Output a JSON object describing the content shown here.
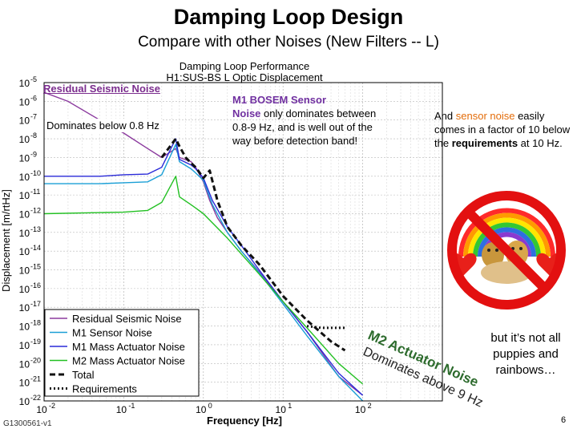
{
  "slide": {
    "title": "Damping Loop Design",
    "subtitle": "Compare with other Noises (New Filters -- L)",
    "doc_id": "G1300561-v1",
    "page_number": "6"
  },
  "annotations": {
    "residual_title": "Residual Seismic Noise",
    "residual_text": "Dominates below 0.8 Hz",
    "bosem_title": "M1 BOSEM Sensor",
    "bosem_highlight": "Noise",
    "bosem_rest": " only dominates between 0.8-9 Hz, and is well out of the way before detection band!",
    "sensor_pre": "And ",
    "sensor_highlight": "sensor noise",
    "sensor_mid": " easily comes in a factor of 10 below the ",
    "sensor_bold": "requirements",
    "sensor_post": " at 10 Hz.",
    "m2_line1": "M2 Actuator Noise",
    "m2_line2": "Dominates above 9 Hz",
    "puppies": "but it’s not all puppies and rainbows…",
    "plot_footer_text": "G1300561-v1"
  },
  "colors": {
    "residual": "#8b3a9e",
    "m1_sensor": "#1a9fd6",
    "m1_mass": "#2a2ad8",
    "m2_mass": "#22c022",
    "total": "#111111",
    "requirements": "#111111",
    "no_sign": "#e31010",
    "annotation_purple": "#7030a0",
    "annotation_orange": "#e36c09",
    "m2_text": "#2d6b2d"
  },
  "chart_data": {
    "type": "line",
    "title": "Damping Loop Performance",
    "subtitle": "H1:SUS-BS L Optic Displacement",
    "xlabel": "Frequency [Hz]",
    "ylabel": "Displacement [m/rtHz]",
    "xscale": "log",
    "yscale": "log",
    "xlim": [
      0.01,
      1000
    ],
    "ylim": [
      1e-22,
      1e-05
    ],
    "x_ticks": [
      0.01,
      0.1,
      1,
      10,
      100
    ],
    "x_tick_labels": [
      "10",
      "10",
      "10",
      "10",
      "10"
    ],
    "x_tick_exps": [
      "-2",
      "-1",
      "0",
      "1",
      "2"
    ],
    "y_ticks": [
      1e-22,
      1e-21,
      1e-20,
      1e-19,
      1e-18,
      1e-17,
      1e-16,
      1e-15,
      1e-14,
      1e-13,
      1e-12,
      1e-11,
      1e-10,
      1e-09,
      1e-08,
      1e-07,
      1e-06,
      1e-05
    ],
    "y_tick_labels": [
      "10",
      "10",
      "10",
      "10",
      "10",
      "10",
      "10",
      "10",
      "10",
      "10",
      "10",
      "10",
      "10",
      "10",
      "10",
      "10",
      "10",
      "10"
    ],
    "y_tick_exps": [
      "-22",
      "-21",
      "-20",
      "-19",
      "-18",
      "-17",
      "-16",
      "-15",
      "-14",
      "-13",
      "-12",
      "-11",
      "-10",
      "-9",
      "-8",
      "-7",
      "-6",
      "-5"
    ],
    "grid": true,
    "legend_position": "bottom-left",
    "series": [
      {
        "name": "Residual Seismic Noise",
        "key": "residual",
        "style": "solid",
        "points": [
          [
            0.01,
            3e-06
          ],
          [
            0.02,
            1e-06
          ],
          [
            0.05,
            1e-07
          ],
          [
            0.1,
            2e-08
          ],
          [
            0.2,
            3e-09
          ],
          [
            0.3,
            1e-09
          ],
          [
            0.45,
            3e-09
          ],
          [
            0.5,
            1e-09
          ],
          [
            0.7,
            6e-10
          ],
          [
            0.8,
            3e-10
          ],
          [
            1.0,
            5e-11
          ],
          [
            1.2,
            5e-12
          ],
          [
            1.5,
            6e-13
          ],
          [
            2.0,
            1e-13
          ],
          [
            3.0,
            1e-14
          ],
          [
            5.0,
            8e-16
          ],
          [
            10,
            2e-17
          ],
          [
            20,
            5e-19
          ],
          [
            50,
            2e-21
          ],
          [
            100,
            2e-22
          ]
        ]
      },
      {
        "name": "M1 Sensor Noise",
        "key": "m1_sensor",
        "style": "solid",
        "points": [
          [
            0.01,
            4e-11
          ],
          [
            0.05,
            4e-11
          ],
          [
            0.1,
            4.5e-11
          ],
          [
            0.2,
            5e-11
          ],
          [
            0.3,
            1.2e-10
          ],
          [
            0.45,
            5e-09
          ],
          [
            0.5,
            6e-10
          ],
          [
            0.7,
            2.5e-10
          ],
          [
            0.8,
            1.5e-10
          ],
          [
            1.0,
            6e-11
          ],
          [
            1.3,
            3e-12
          ],
          [
            2.0,
            1e-13
          ],
          [
            3.0,
            1e-14
          ],
          [
            5.0,
            7e-16
          ],
          [
            10,
            1.5e-17
          ],
          [
            20,
            3e-19
          ],
          [
            50,
            2e-21
          ],
          [
            100,
            1e-22
          ]
        ]
      },
      {
        "name": "M1 Mass Actuator Noise",
        "key": "m1_mass",
        "style": "solid",
        "points": [
          [
            0.01,
            1e-10
          ],
          [
            0.05,
            1e-10
          ],
          [
            0.1,
            1.2e-10
          ],
          [
            0.2,
            1.3e-10
          ],
          [
            0.3,
            3e-10
          ],
          [
            0.45,
            1e-08
          ],
          [
            0.5,
            8e-10
          ],
          [
            0.7,
            4e-10
          ],
          [
            0.8,
            2.5e-10
          ],
          [
            1.0,
            8e-11
          ],
          [
            1.3,
            5e-12
          ],
          [
            2.0,
            2e-13
          ],
          [
            3.0,
            2e-14
          ],
          [
            5.0,
            1e-15
          ],
          [
            10,
            2e-17
          ],
          [
            20,
            5e-19
          ],
          [
            50,
            3e-21
          ],
          [
            100,
            2e-22
          ]
        ]
      },
      {
        "name": "M2 Mass Actuator Noise",
        "key": "m2_mass",
        "style": "solid",
        "points": [
          [
            0.01,
            1e-12
          ],
          [
            0.1,
            1.2e-12
          ],
          [
            0.2,
            1.5e-12
          ],
          [
            0.3,
            4e-12
          ],
          [
            0.45,
            1e-10
          ],
          [
            0.5,
            8e-12
          ],
          [
            0.7,
            3e-12
          ],
          [
            0.8,
            2e-12
          ],
          [
            1.0,
            1e-12
          ],
          [
            2.0,
            5e-14
          ],
          [
            3.0,
            7e-15
          ],
          [
            5.0,
            6e-16
          ],
          [
            10,
            2e-17
          ],
          [
            20,
            8e-19
          ],
          [
            50,
            1e-20
          ],
          [
            100,
            8e-22
          ]
        ]
      },
      {
        "name": "Total",
        "key": "total",
        "style": "dashed",
        "points": [
          [
            0.3,
            1e-09
          ],
          [
            0.45,
            1e-08
          ],
          [
            0.5,
            4e-09
          ],
          [
            0.6,
            1e-09
          ],
          [
            0.7,
            5e-10
          ],
          [
            0.8,
            3e-10
          ],
          [
            1.0,
            8e-11
          ],
          [
            1.2,
            2e-10
          ],
          [
            1.5,
            5e-12
          ],
          [
            2.0,
            2e-13
          ],
          [
            3.0,
            2e-14
          ],
          [
            5.0,
            2e-15
          ],
          [
            10,
            4e-17
          ],
          [
            20,
            2e-18
          ],
          [
            40,
            1.5e-19
          ],
          [
            60,
            5e-20
          ]
        ]
      },
      {
        "name": "Requirements",
        "key": "requirements",
        "style": "dotted",
        "points": [
          [
            20,
            1e-18
          ],
          [
            30,
            8e-19
          ],
          [
            50,
            8e-19
          ],
          [
            60,
            8e-19
          ]
        ]
      }
    ]
  }
}
